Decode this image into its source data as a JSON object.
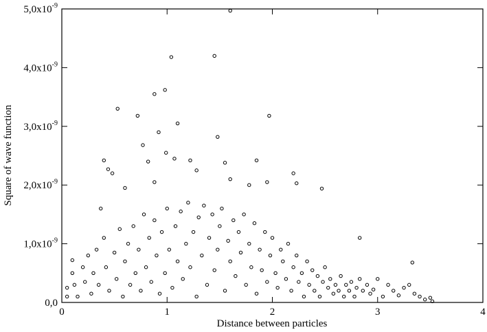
{
  "chart_data": {
    "type": "scatter",
    "x_label": "Distance between particles",
    "y_label": "Square of wave function",
    "xlim": [
      0,
      4
    ],
    "xticks": [
      0,
      1,
      2,
      3,
      4
    ],
    "ylim": [
      0,
      5e-09
    ],
    "yticks": [
      {
        "value": 0,
        "label": "0,0"
      },
      {
        "value": 1e-09,
        "label": "1,0x10",
        "exponent": "-9"
      },
      {
        "value": 2e-09,
        "label": "2,0x10",
        "exponent": "-9"
      },
      {
        "value": 3e-09,
        "label": "3,0x10",
        "exponent": "-9"
      },
      {
        "value": 4e-09,
        "label": "4,0x10",
        "exponent": "-9"
      },
      {
        "value": 5e-09,
        "label": "5,0x10",
        "exponent": "-9"
      }
    ],
    "color": "#000000",
    "x": [
      0.05,
      0.05,
      0.1,
      0.12,
      0.15,
      0.2,
      0.22,
      0.25,
      0.28,
      0.3,
      0.33,
      0.35,
      0.4,
      0.42,
      0.45,
      0.5,
      0.52,
      0.55,
      0.58,
      0.6,
      0.63,
      0.65,
      0.68,
      0.7,
      0.73,
      0.75,
      0.78,
      0.8,
      0.83,
      0.85,
      0.88,
      0.9,
      0.93,
      0.95,
      0.98,
      1.0,
      1.02,
      1.05,
      1.08,
      1.1,
      1.13,
      1.15,
      1.18,
      1.2,
      1.22,
      1.25,
      1.28,
      1.3,
      1.33,
      1.35,
      1.38,
      1.4,
      1.43,
      1.45,
      1.48,
      1.5,
      1.52,
      1.55,
      1.58,
      1.6,
      1.63,
      1.65,
      1.68,
      1.7,
      1.73,
      1.75,
      1.78,
      1.8,
      1.83,
      1.85,
      1.88,
      1.9,
      1.93,
      1.95,
      1.98,
      2.0,
      2.03,
      2.05,
      2.08,
      2.1,
      2.13,
      2.15,
      2.18,
      2.2,
      2.23,
      2.25,
      2.28,
      2.3,
      2.33,
      2.35,
      2.38,
      2.4,
      2.43,
      2.45,
      2.48,
      2.5,
      2.53,
      2.55,
      2.58,
      2.6,
      2.63,
      2.65,
      2.68,
      2.7,
      2.73,
      2.75,
      2.78,
      2.8,
      2.83,
      2.86,
      2.9,
      2.93,
      2.96,
      3.0,
      3.05,
      3.1,
      3.15,
      3.2,
      3.25,
      3.3,
      3.35,
      3.4,
      3.45,
      3.5,
      3.52,
      1.6,
      1.45,
      1.04,
      0.98,
      0.88,
      0.53,
      0.72,
      1.97,
      1.1,
      0.92,
      1.48,
      0.77,
      0.99,
      1.07,
      0.82,
      0.4,
      0.44,
      0.48,
      1.22,
      1.55,
      1.85,
      1.28,
      2.2,
      2.47,
      2.23,
      1.6,
      1.95,
      1.78,
      0.88,
      0.6,
      2.83,
      3.33,
      0.37,
      0.1
    ],
    "values": [
      1e-10,
      2.5e-10,
      5e-10,
      3e-10,
      1e-10,
      6e-10,
      3.5e-10,
      8e-10,
      1.5e-10,
      5e-10,
      9e-10,
      3e-10,
      1.1e-09,
      6e-10,
      2e-10,
      8.5e-10,
      4e-10,
      1.25e-09,
      1e-10,
      7e-10,
      1e-09,
      3e-10,
      1.3e-09,
      5e-10,
      9e-10,
      2e-10,
      1.5e-09,
      6e-10,
      1.1e-09,
      3.5e-10,
      1.4e-09,
      8e-10,
      1.5e-10,
      1.2e-09,
      5e-10,
      1.6e-09,
      9e-10,
      2.5e-10,
      1.3e-09,
      7e-10,
      1.55e-09,
      4e-10,
      1e-09,
      1.7e-09,
      6e-10,
      1.2e-09,
      1e-10,
      1.45e-09,
      8e-10,
      1.65e-09,
      3e-10,
      1.1e-09,
      1.5e-09,
      5.5e-10,
      9e-10,
      1.3e-09,
      1.6e-09,
      2e-10,
      1.05e-09,
      7e-10,
      1.4e-09,
      4.5e-10,
      1.2e-09,
      8.5e-10,
      1.5e-09,
      3e-10,
      1e-09,
      6e-10,
      1.35e-09,
      1.5e-10,
      9e-10,
      5.5e-10,
      1.2e-09,
      3.5e-10,
      8e-10,
      1.1e-09,
      5e-10,
      2.5e-10,
      9e-10,
      7e-10,
      4e-10,
      1e-09,
      2e-10,
      6e-10,
      8e-10,
      3.5e-10,
      5e-10,
      1e-10,
      7e-10,
      3e-10,
      5.5e-10,
      2e-10,
      4.5e-10,
      1e-10,
      3.5e-10,
      6e-10,
      2.5e-10,
      4e-10,
      1.5e-10,
      3e-10,
      2e-10,
      4.5e-10,
      1e-10,
      3e-10,
      2e-10,
      3.5e-10,
      1e-10,
      2.5e-10,
      4e-10,
      2e-10,
      3e-10,
      1.5e-10,
      2.2e-10,
      4e-10,
      1e-10,
      3e-10,
      2e-10,
      1.2e-10,
      2.5e-10,
      3e-10,
      1.5e-10,
      1e-10,
      5e-11,
      8e-11,
      2e-11,
      4.97e-09,
      4.2e-09,
      4.18e-09,
      3.62e-09,
      3.55e-09,
      3.3e-09,
      3.18e-09,
      3.18e-09,
      3.05e-09,
      2.9e-09,
      2.82e-09,
      2.68e-09,
      2.55e-09,
      2.45e-09,
      2.4e-09,
      2.42e-09,
      2.27e-09,
      2.2e-09,
      2.42e-09,
      2.38e-09,
      2.42e-09,
      2.25e-09,
      2.2e-09,
      1.94e-09,
      2.03e-09,
      2.1e-09,
      2.05e-09,
      2e-09,
      2.05e-09,
      1.95e-09,
      1.1e-09,
      6.8e-10,
      1.6e-09,
      7.2e-10
    ]
  }
}
